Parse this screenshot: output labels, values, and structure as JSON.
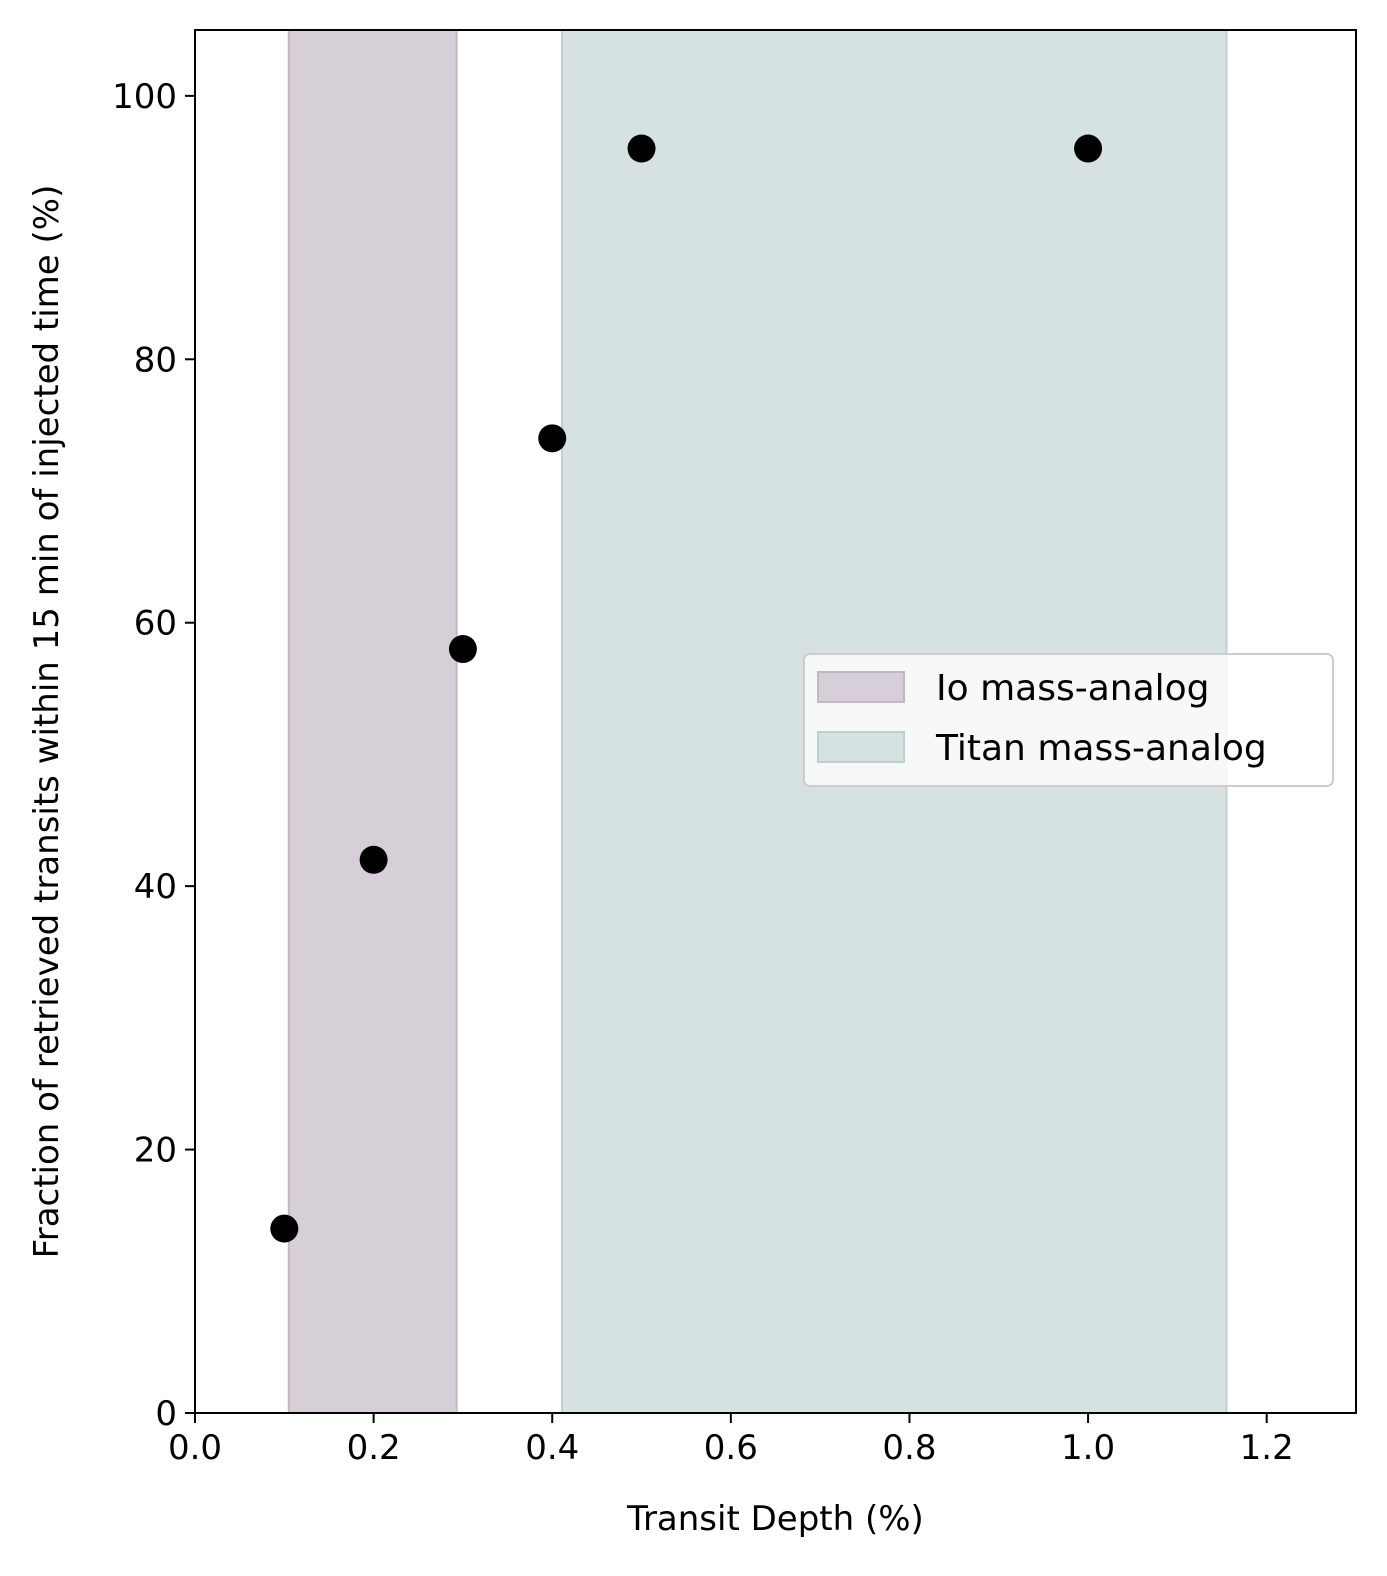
{
  "chart_data": {
    "type": "scatter",
    "title": "",
    "xlabel": "Transit Depth (%)",
    "ylabel": "Fraction of retrieved transits within 15 min of injected time (%)",
    "xlim": [
      0.0,
      1.3
    ],
    "ylim": [
      0,
      105
    ],
    "xticks": [
      "0.0",
      "0.2",
      "0.4",
      "0.6",
      "0.8",
      "1.0",
      "1.2"
    ],
    "xtick_values": [
      0.0,
      0.2,
      0.4,
      0.6,
      0.8,
      1.0,
      1.2
    ],
    "yticks": [
      "0",
      "20",
      "40",
      "60",
      "80",
      "100"
    ],
    "ytick_values": [
      0,
      20,
      40,
      60,
      80,
      100
    ],
    "grid": false,
    "series": [
      {
        "marker_color": "#000000",
        "points": [
          {
            "x": 0.1,
            "y": 14
          },
          {
            "x": 0.2,
            "y": 42
          },
          {
            "x": 0.3,
            "y": 58
          },
          {
            "x": 0.4,
            "y": 74
          },
          {
            "x": 0.5,
            "y": 96
          },
          {
            "x": 1.0,
            "y": 96
          }
        ]
      }
    ],
    "bands": [
      {
        "name": "Io mass-analog",
        "x_start": 0.105,
        "x_end": 0.293,
        "color": "#d7cfd8",
        "edge": "#c4b5c8"
      },
      {
        "name": "Titan mass-analog",
        "x_start": 0.411,
        "x_end": 1.155,
        "color": "#d6e2e2",
        "edge": "#bdd0cf"
      }
    ],
    "legend": {
      "placement": "center-right",
      "entries": [
        "Io mass-analog",
        "Titan mass-analog"
      ]
    }
  }
}
